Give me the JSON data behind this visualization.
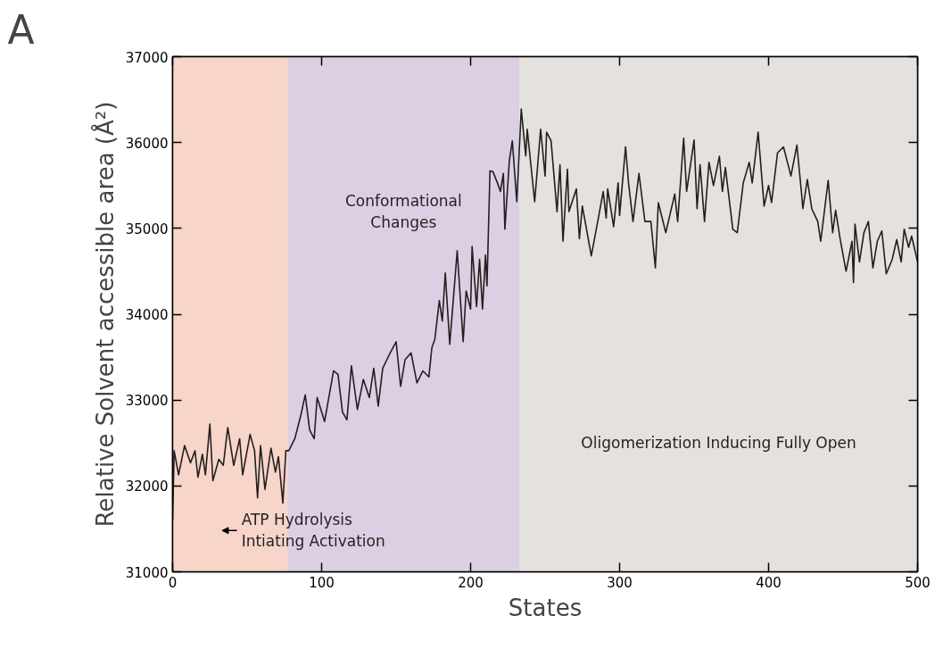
{
  "chart_data": {
    "type": "line",
    "xlabel": "States",
    "ylabel": "Relative Solvent accessible area (Å²)",
    "annotations": [
      "A"
    ],
    "xlim": [
      0,
      500
    ],
    "ylim": [
      31000,
      37000
    ],
    "xticks": [
      0,
      100,
      200,
      300,
      400,
      500
    ],
    "yticks": [
      31000,
      32000,
      33000,
      34000,
      35000,
      36000,
      37000
    ],
    "grid": false,
    "marker": "none",
    "line_style": "solid",
    "bands": [
      {
        "axis": "x",
        "from": 0,
        "to": 77,
        "label": "ATP Hydrolysis\nIntiating Activation",
        "color": "#f7d5c9"
      },
      {
        "axis": "x",
        "from": 77,
        "to": 233,
        "label": "Conformational\nChanges",
        "color": "#dccfe3"
      },
      {
        "axis": "x",
        "from": 233,
        "to": 500,
        "label": "Oligomerization Inducing Fully Open",
        "color": "#e4e1de"
      }
    ],
    "series": [
      {
        "color": "#231f20",
        "x": [
          0,
          1,
          4,
          8,
          12,
          15,
          17,
          20,
          22,
          25,
          27,
          31,
          34,
          37,
          41,
          45,
          47,
          52,
          55,
          57,
          59,
          62,
          66,
          69,
          71,
          74,
          76,
          78,
          82,
          86,
          89,
          92,
          95,
          97,
          102,
          108,
          111,
          114,
          117,
          120,
          124,
          128,
          132,
          135,
          138,
          141,
          146,
          150,
          153,
          156,
          160,
          164,
          168,
          172,
          174,
          176,
          179,
          181,
          183,
          186,
          191,
          195,
          197,
          200,
          201,
          204,
          206,
          208,
          210,
          211,
          213,
          215,
          218,
          220,
          222,
          223,
          226,
          228,
          231,
          234,
          237,
          238,
          243,
          247,
          250,
          251,
          254,
          258,
          260,
          262,
          265,
          266,
          271,
          273,
          275,
          281,
          285,
          289,
          291,
          292,
          296,
          299,
          300,
          304,
          306,
          309,
          313,
          317,
          321,
          324,
          326,
          331,
          337,
          339,
          343,
          345,
          350,
          352,
          354,
          357,
          360,
          363,
          367,
          369,
          371,
          376,
          379,
          383,
          387,
          389,
          393,
          397,
          400,
          402,
          406,
          410,
          415,
          419,
          422,
          423,
          426,
          429,
          433,
          435,
          440,
          443,
          445,
          448,
          452,
          456,
          457,
          458,
          461,
          464,
          467,
          470,
          473,
          476,
          479,
          483,
          486,
          489,
          491,
          494,
          496,
          500
        ],
        "values": [
          31600,
          32410,
          32130,
          32470,
          32270,
          32410,
          32100,
          32370,
          32130,
          32720,
          32060,
          32310,
          32240,
          32680,
          32240,
          32550,
          32130,
          32600,
          32410,
          31860,
          32470,
          31960,
          32440,
          32160,
          32340,
          31800,
          32410,
          32410,
          32550,
          32820,
          33060,
          32650,
          32550,
          33030,
          32750,
          33340,
          33300,
          32860,
          32770,
          33400,
          32890,
          33240,
          33030,
          33370,
          32930,
          33370,
          33550,
          33680,
          33160,
          33470,
          33550,
          33200,
          33340,
          33270,
          33610,
          33710,
          34160,
          33920,
          34480,
          33650,
          34740,
          33680,
          34270,
          34060,
          34790,
          34090,
          34640,
          34060,
          34690,
          34330,
          35670,
          35660,
          35530,
          35430,
          35640,
          34990,
          35790,
          36020,
          35310,
          36390,
          35845,
          36155,
          35310,
          36155,
          35610,
          36120,
          36020,
          35195,
          35740,
          34850,
          35690,
          35195,
          35460,
          34880,
          35260,
          34680,
          35050,
          35430,
          35120,
          35460,
          35020,
          35530,
          35150,
          35950,
          35530,
          35080,
          35640,
          35080,
          35080,
          34540,
          35300,
          34950,
          35400,
          35080,
          36050,
          35430,
          36030,
          35230,
          35740,
          35080,
          35770,
          35500,
          35840,
          35430,
          35710,
          34990,
          34950,
          35530,
          35770,
          35530,
          36120,
          35260,
          35500,
          35300,
          35880,
          35950,
          35610,
          35970,
          35430,
          35230,
          35570,
          35230,
          35080,
          34850,
          35560,
          34950,
          35210,
          34880,
          34500,
          34850,
          34370,
          35050,
          34610,
          34950,
          35080,
          34540,
          34850,
          34970,
          34470,
          34640,
          34870,
          34610,
          34990,
          34780,
          34910,
          34610
        ]
      }
    ]
  }
}
